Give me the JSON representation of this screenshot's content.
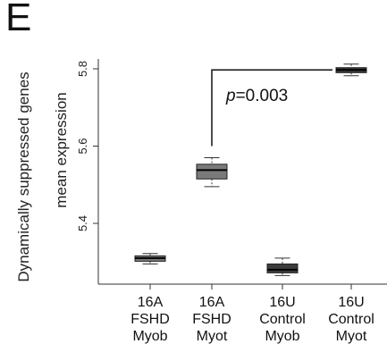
{
  "panel_label": "E",
  "chart_data": {
    "type": "box",
    "ylabel_line1": "Dynamically suppressed genes",
    "ylabel_line2": "mean expression",
    "yticks": [
      5.4,
      5.6,
      5.8
    ],
    "ylim": [
      5.25,
      5.82
    ],
    "grid": false,
    "categories": [
      {
        "lines": [
          "16A",
          "FSHD",
          "Myob"
        ]
      },
      {
        "lines": [
          "16A",
          "FSHD",
          "Myot"
        ]
      },
      {
        "lines": [
          "16U",
          "Control",
          "Myob"
        ]
      },
      {
        "lines": [
          "16U",
          "Control",
          "Myot"
        ]
      }
    ],
    "boxes": [
      {
        "color": "#7a7a7a",
        "whisker_low": 5.295,
        "q1": 5.302,
        "median": 5.31,
        "q3": 5.316,
        "whisker_high": 5.322
      },
      {
        "color": "#7a7a7a",
        "whisker_low": 5.495,
        "q1": 5.515,
        "median": 5.538,
        "q3": 5.553,
        "whisker_high": 5.57
      },
      {
        "color": "#3d3d3d",
        "whisker_low": 5.265,
        "q1": 5.272,
        "median": 5.28,
        "q3": 5.295,
        "whisker_high": 5.31
      },
      {
        "color": "#3d3d3d",
        "whisker_low": 5.782,
        "q1": 5.79,
        "median": 5.797,
        "q3": 5.803,
        "whisker_high": 5.812
      }
    ],
    "annotation": {
      "italic": "p",
      "text": "=0.003",
      "from_box": 1,
      "to_box": 3,
      "bracket_bottom": 5.6,
      "bracket_top": 5.797
    }
  }
}
